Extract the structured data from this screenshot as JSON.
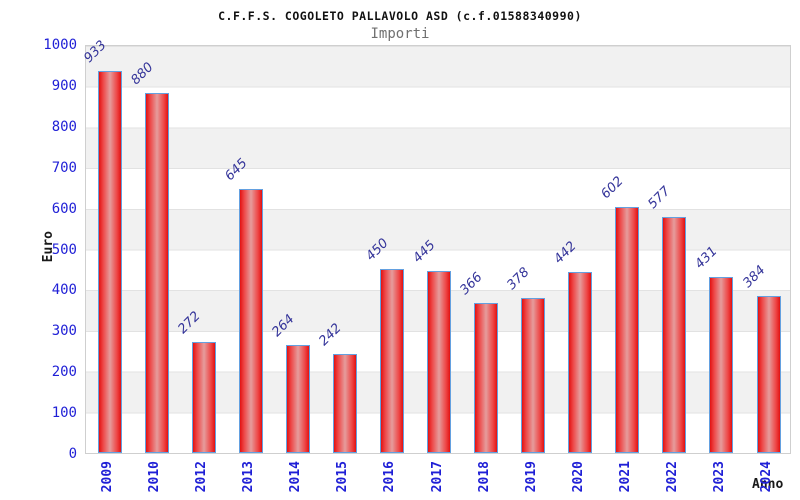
{
  "chart_data": {
    "type": "bar",
    "title": "C.F.F.S. COGOLETO PALLAVOLO ASD (c.f.01588340990)",
    "subtitle": "Importi",
    "xlabel": "Anno",
    "ylabel": "Euro",
    "categories": [
      "2009",
      "2010",
      "2012",
      "2013",
      "2014",
      "2015",
      "2016",
      "2017",
      "2018",
      "2019",
      "2020",
      "2021",
      "2022",
      "2023",
      "2024"
    ],
    "values": [
      933,
      880,
      272,
      645,
      264,
      242,
      450,
      445,
      366,
      378,
      442,
      602,
      577,
      431,
      384
    ],
    "ylim": [
      0,
      1000
    ],
    "y_ticks": [
      0,
      100,
      200,
      300,
      400,
      500,
      600,
      700,
      800,
      900,
      1000
    ],
    "grid": "horizontal-bands",
    "legend": "none",
    "colors": {
      "bar_edge": "#e21212",
      "bar_mid": "#e59c9c",
      "bar_border": "#63a0e0",
      "tick_label": "#1f1fd6",
      "value_label": "#333399",
      "band": "#f1f1f1",
      "grid_line": "#e2e2e2",
      "plot_border": "#cfcfcf",
      "title": "#111111",
      "subtitle": "#707070",
      "axis_title": "#1a1a1a"
    }
  }
}
